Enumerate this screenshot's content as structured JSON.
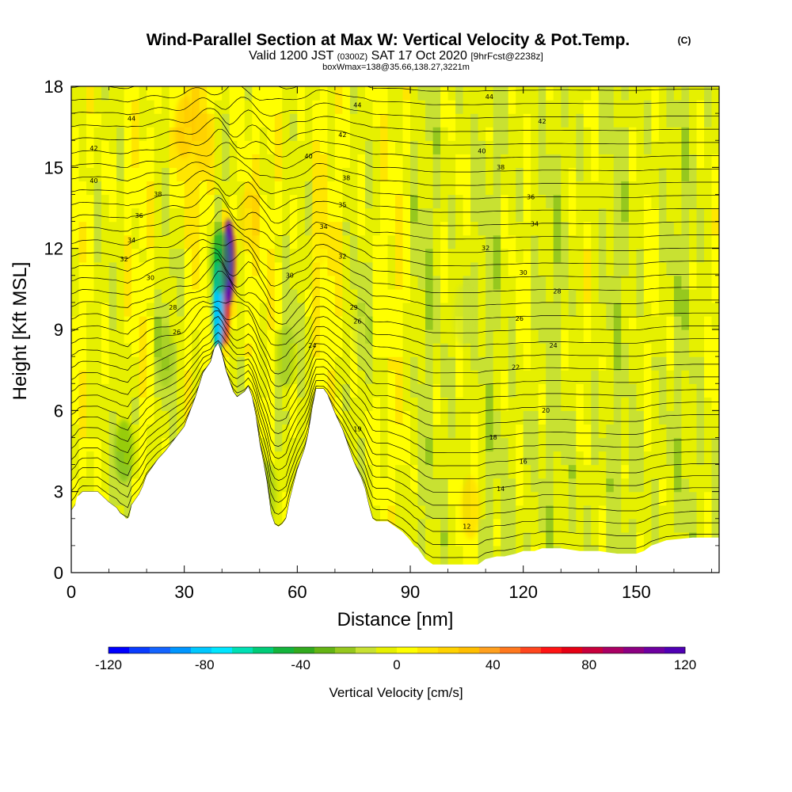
{
  "header": {
    "title": "Wind-Parallel Section at Max W: Vertical Velocity & Pot.Temp.",
    "copyright": "(C)",
    "valid_prefix": "Valid 1200 JST",
    "utc_time": "(0300Z)",
    "valid_date": "SAT 17 Oct 2020",
    "forecast": "[9hrFcst@2238z]",
    "box_info": "boxWmax=138@35.66,138.27,3221m"
  },
  "chart_data": {
    "type": "heatmap",
    "xlabel": "Distance [nm]",
    "ylabel": "Height [Kft MSL]",
    "xlim": [
      0,
      172
    ],
    "ylim": [
      0,
      18
    ],
    "x_ticks": [
      0,
      30,
      60,
      90,
      120,
      150
    ],
    "y_ticks": [
      0,
      3,
      6,
      9,
      12,
      15,
      18
    ],
    "colorbar": {
      "label": "Vertical Velocity [cm/s]",
      "range": [
        -120,
        120
      ],
      "tick_values": [
        -120,
        -80,
        -40,
        0,
        40,
        80,
        120
      ],
      "tick_labels": [
        "-120",
        "-80",
        "-40",
        "0",
        "40",
        "80",
        "120"
      ],
      "colors": [
        "#0000ff",
        "#0a3cff",
        "#1464ff",
        "#0096ff",
        "#00c8ff",
        "#00e6ff",
        "#00e0b4",
        "#00cc78",
        "#14b43c",
        "#32aa1e",
        "#64b414",
        "#96c81e",
        "#c8e132",
        "#e6f000",
        "#ffff00",
        "#ffe600",
        "#ffd200",
        "#ffbe00",
        "#ffa01e",
        "#ff781e",
        "#ff461e",
        "#ff1414",
        "#e60014",
        "#c8003c",
        "#aa0064",
        "#8c0082",
        "#6e00a0",
        "#5000b4"
      ]
    },
    "terrain_profile": {
      "x": [
        0,
        1,
        1.5,
        3,
        4,
        7,
        10,
        12,
        13,
        14,
        14.5,
        15,
        15.5,
        16,
        17,
        18,
        19,
        20,
        21,
        23,
        25,
        30,
        33,
        35,
        37,
        38,
        39,
        40,
        41,
        42,
        43,
        44,
        45,
        46,
        47,
        48,
        49,
        50,
        51,
        52,
        53,
        54,
        55,
        56,
        57,
        58,
        60,
        62,
        63,
        64,
        65,
        66,
        67,
        68,
        70,
        72,
        73,
        74,
        75,
        76,
        77,
        78,
        79,
        80,
        81,
        82,
        84,
        86,
        88,
        90,
        91,
        92,
        93,
        94,
        95,
        96,
        98,
        100,
        102,
        104,
        106,
        108,
        110,
        113,
        115,
        118,
        120,
        123,
        125,
        130,
        135,
        140,
        145,
        150,
        152,
        154,
        158,
        165,
        172
      ],
      "y": [
        2.3,
        2.5,
        2.8,
        3.0,
        3.0,
        3.0,
        2.6,
        2.4,
        2.2,
        2.1,
        2.0,
        2.0,
        2.1,
        2.5,
        2.7,
        2.9,
        3.2,
        3.6,
        3.8,
        4.2,
        4.5,
        5.4,
        6.5,
        7.4,
        7.8,
        8.3,
        8.5,
        8.1,
        7.5,
        7.1,
        6.7,
        6.5,
        6.6,
        6.7,
        6.9,
        6.5,
        5.8,
        4.8,
        4.1,
        3.3,
        2.2,
        1.8,
        1.7,
        1.8,
        2.0,
        2.7,
        3.8,
        4.6,
        5.2,
        6.1,
        6.8,
        6.8,
        6.8,
        6.6,
        5.9,
        5.3,
        4.9,
        4.5,
        4.1,
        3.8,
        3.5,
        3.1,
        2.5,
        2.0,
        1.9,
        1.9,
        1.9,
        1.7,
        1.5,
        1.2,
        1.0,
        0.9,
        0.7,
        0.5,
        0.4,
        0.3,
        0.3,
        0.3,
        0.3,
        0.3,
        0.3,
        0.3,
        0.5,
        0.6,
        0.6,
        0.7,
        0.8,
        0.8,
        0.9,
        0.9,
        0.8,
        0.8,
        0.7,
        0.7,
        0.8,
        1.0,
        1.2,
        1.3,
        1.3
      ]
    },
    "updraft_cores": [
      {
        "x": 40.5,
        "y": 10.0,
        "w": 85
      },
      {
        "x": 41.8,
        "y": 11.5,
        "w": 120
      },
      {
        "x": 39.0,
        "y": 9.8,
        "w": -80
      },
      {
        "x": 39.5,
        "y": 11.5,
        "w": -50
      },
      {
        "x": 30.0,
        "y": 16.5,
        "w": 30
      },
      {
        "x": 35.0,
        "y": 16.0,
        "w": 25
      },
      {
        "x": 47.0,
        "y": 13.0,
        "w": 20
      },
      {
        "x": 66.0,
        "y": 12.5,
        "w": 15
      },
      {
        "x": 106.0,
        "y": 2.4,
        "w": 25
      },
      {
        "x": 14.0,
        "y": 4.5,
        "w": -30
      },
      {
        "x": 25.0,
        "y": 8.0,
        "w": -25
      },
      {
        "x": 57.0,
        "y": 8.0,
        "w": -20
      },
      {
        "x": 52.0,
        "y": 3.0,
        "w": -25
      },
      {
        "x": 77.0,
        "y": 9.0,
        "w": -15
      },
      {
        "x": 104.0,
        "y": 9.5,
        "w": -15
      }
    ],
    "theta_levels": [
      10,
      11,
      12,
      13,
      14,
      15,
      16,
      17,
      18,
      19,
      20,
      21,
      22,
      23,
      24,
      25,
      26,
      27,
      28,
      29,
      30,
      31,
      32,
      33,
      34,
      35,
      36,
      37,
      38,
      39,
      40,
      41,
      42,
      43,
      44,
      45
    ],
    "contour_labels": [
      {
        "x": 105,
        "y": 1.7,
        "text": "12"
      },
      {
        "x": 114,
        "y": 3.1,
        "text": "14"
      },
      {
        "x": 120,
        "y": 4.1,
        "text": "16"
      },
      {
        "x": 112,
        "y": 5.0,
        "text": "18"
      },
      {
        "x": 76,
        "y": 5.3,
        "text": "19"
      },
      {
        "x": 126,
        "y": 6.0,
        "text": "20"
      },
      {
        "x": 118,
        "y": 7.6,
        "text": "22"
      },
      {
        "x": 128,
        "y": 8.4,
        "text": "24"
      },
      {
        "x": 64,
        "y": 8.4,
        "text": "24"
      },
      {
        "x": 28,
        "y": 8.9,
        "text": "26"
      },
      {
        "x": 76,
        "y": 9.3,
        "text": "26"
      },
      {
        "x": 119,
        "y": 9.4,
        "text": "26"
      },
      {
        "x": 27,
        "y": 9.8,
        "text": "28"
      },
      {
        "x": 75,
        "y": 9.8,
        "text": "29"
      },
      {
        "x": 129,
        "y": 10.4,
        "text": "28"
      },
      {
        "x": 21,
        "y": 10.9,
        "text": "30"
      },
      {
        "x": 58,
        "y": 11.0,
        "text": "30"
      },
      {
        "x": 120,
        "y": 11.1,
        "text": "30"
      },
      {
        "x": 14,
        "y": 11.6,
        "text": "32"
      },
      {
        "x": 72,
        "y": 11.7,
        "text": "32"
      },
      {
        "x": 110,
        "y": 12.0,
        "text": "32"
      },
      {
        "x": 16,
        "y": 12.3,
        "text": "34"
      },
      {
        "x": 67,
        "y": 12.8,
        "text": "34"
      },
      {
        "x": 123,
        "y": 12.9,
        "text": "34"
      },
      {
        "x": 18,
        "y": 13.2,
        "text": "36"
      },
      {
        "x": 72,
        "y": 13.6,
        "text": "35"
      },
      {
        "x": 122,
        "y": 13.9,
        "text": "36"
      },
      {
        "x": 23,
        "y": 14.0,
        "text": "38"
      },
      {
        "x": 73,
        "y": 14.6,
        "text": "38"
      },
      {
        "x": 114,
        "y": 15.0,
        "text": "38"
      },
      {
        "x": 6,
        "y": 14.5,
        "text": "40"
      },
      {
        "x": 63,
        "y": 15.4,
        "text": "40"
      },
      {
        "x": 109,
        "y": 15.6,
        "text": "40"
      },
      {
        "x": 6,
        "y": 15.7,
        "text": "42"
      },
      {
        "x": 72,
        "y": 16.2,
        "text": "42"
      },
      {
        "x": 125,
        "y": 16.7,
        "text": "42"
      },
      {
        "x": 16,
        "y": 16.8,
        "text": "44"
      },
      {
        "x": 76,
        "y": 17.3,
        "text": "44"
      },
      {
        "x": 111,
        "y": 17.6,
        "text": "44"
      }
    ]
  }
}
